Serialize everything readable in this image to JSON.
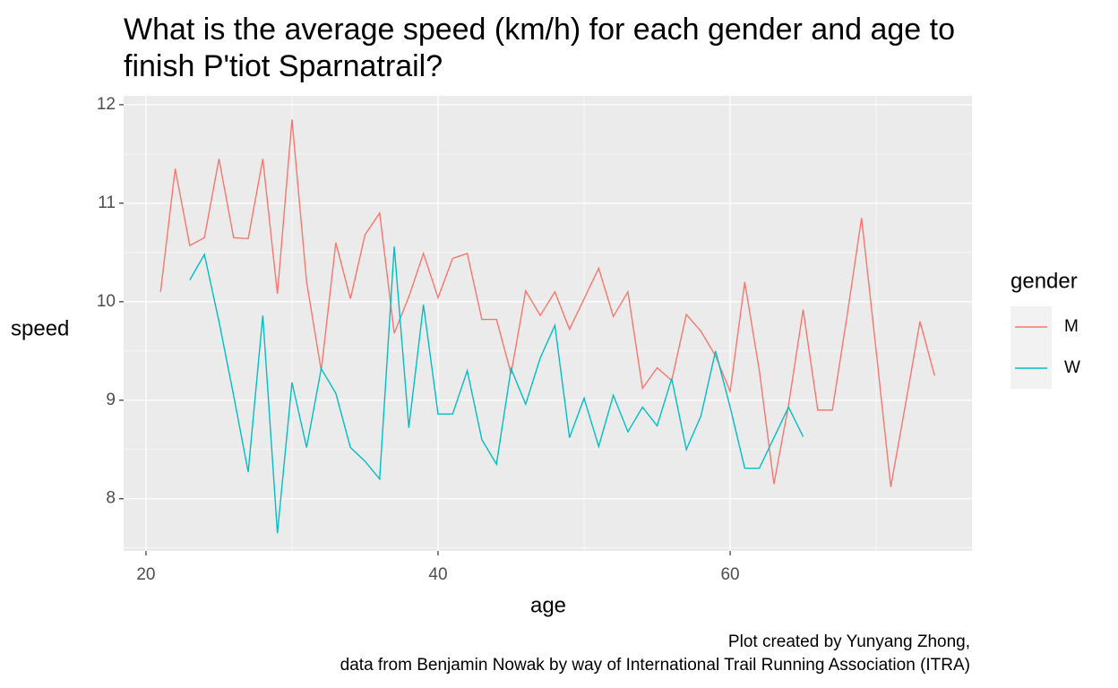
{
  "chart_data": {
    "type": "line",
    "title": [
      "What is the average speed (km/h) for each gender and age to",
      "finish P'tiot Sparnatrail?"
    ],
    "x_label": "age",
    "y_label": "speed",
    "legend_title": "gender",
    "caption": [
      "Plot created by Yunyang Zhong,",
      "data from Benjamin Nowak by way of International Trail Running Association (ITRA)"
    ],
    "xlim": [
      18.47,
      76.56
    ],
    "xticks": [
      20,
      40,
      60
    ],
    "ylim": [
      7.47,
      12.09
    ],
    "yticks": [
      8,
      9,
      10,
      11,
      12
    ],
    "grid": true,
    "series": [
      {
        "name": "M",
        "color": "#f8766d",
        "x": [
          21,
          22,
          23,
          24,
          25,
          26,
          27,
          28,
          29,
          30,
          31,
          32,
          33,
          34,
          35,
          36,
          37,
          38,
          39,
          40,
          41,
          42,
          43,
          44,
          45,
          46,
          47,
          48,
          49,
          50,
          51,
          52,
          53,
          54,
          55,
          56,
          57,
          58,
          59,
          60,
          61,
          62,
          63,
          64,
          65,
          66,
          67,
          68,
          69,
          70,
          71,
          72,
          73,
          74
        ],
        "values": [
          10.1,
          11.35,
          10.57,
          10.65,
          11.45,
          10.65,
          10.64,
          11.45,
          10.08,
          11.85,
          10.2,
          9.3,
          10.6,
          10.03,
          10.68,
          10.9,
          9.68,
          10.05,
          10.49,
          10.04,
          10.44,
          10.49,
          9.82,
          9.82,
          9.27,
          10.11,
          9.86,
          10.1,
          9.72,
          10.03,
          10.34,
          9.85,
          10.1,
          9.12,
          9.33,
          9.2,
          9.87,
          9.7,
          9.45,
          9.09,
          10.2,
          9.3,
          8.15,
          8.95,
          9.92,
          8.9,
          8.9,
          9.85,
          10.85,
          9.5,
          8.12,
          8.95,
          9.8,
          9.25
        ]
      },
      {
        "name": "W",
        "color": "#00bfc4",
        "x": [
          23,
          24,
          25,
          26,
          27,
          28,
          29,
          30,
          31,
          32,
          33,
          34,
          35,
          36,
          37,
          38,
          39,
          40,
          41,
          42,
          43,
          44,
          45,
          46,
          47,
          48,
          49,
          50,
          51,
          52,
          53,
          54,
          55,
          56,
          57,
          58,
          59,
          60,
          61,
          62,
          63,
          64,
          65
        ],
        "values": [
          10.22,
          10.48,
          9.8,
          9.05,
          8.27,
          9.86,
          7.65,
          9.18,
          8.52,
          9.32,
          9.07,
          8.52,
          8.38,
          8.2,
          10.56,
          8.72,
          9.97,
          8.86,
          8.86,
          9.3,
          8.6,
          8.35,
          9.32,
          8.96,
          9.43,
          9.76,
          8.62,
          9.02,
          8.53,
          9.05,
          8.68,
          8.93,
          8.74,
          9.22,
          8.5,
          8.84,
          9.5,
          8.93,
          8.31,
          8.31,
          8.62,
          8.93,
          8.63
        ]
      }
    ]
  }
}
